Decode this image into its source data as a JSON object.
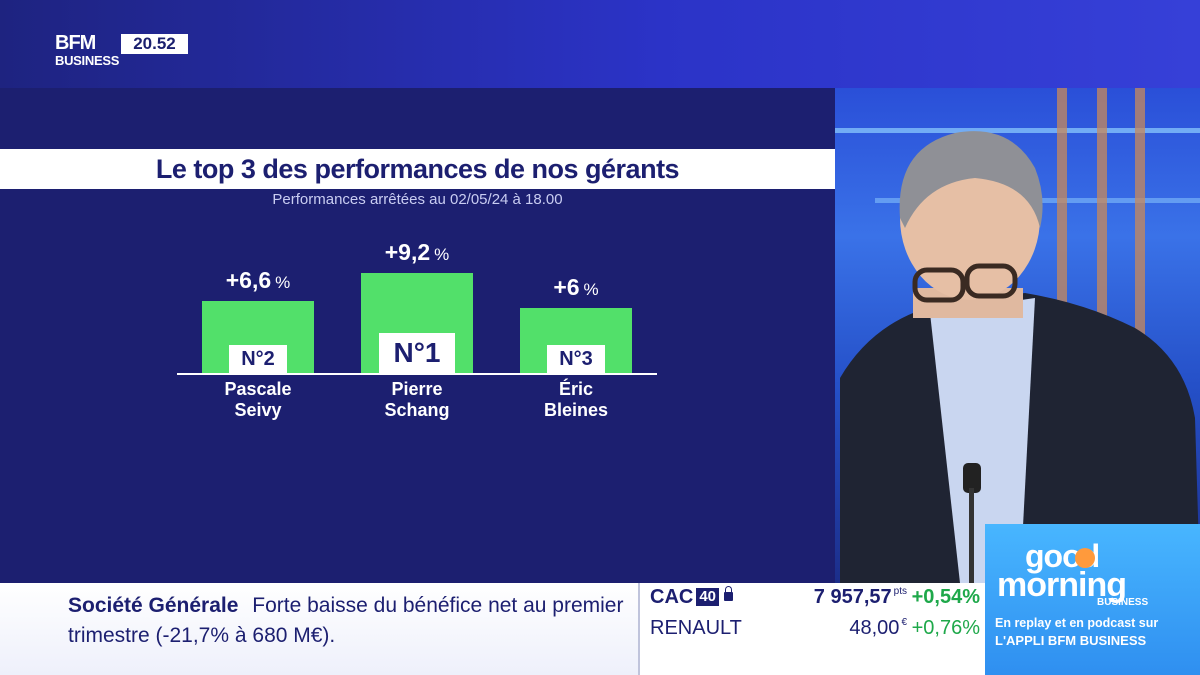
{
  "channel": {
    "logo_top": "BFM",
    "logo_bottom": "BUSINESS",
    "time": "20.52"
  },
  "graphic": {
    "title": "Le top 3 des performances de nos gérants",
    "subtitle": "Performances arrêtées au 02/05/24 à 18.00",
    "bar_color": "#52e06a"
  },
  "chart_data": {
    "type": "bar",
    "title": "Le top 3 des performances de nos gérants",
    "subtitle": "Performances arrêtées au 02/05/24 à 18.00",
    "unit": "%",
    "categories": [
      "Pascale Seivy",
      "Pierre Schang",
      "Éric Bleines"
    ],
    "values": [
      6.6,
      9.2,
      6
    ],
    "value_labels": [
      "+6,6",
      "+9,2",
      "+6"
    ],
    "ranks": [
      "N°2",
      "N°1",
      "N°3"
    ],
    "name_lines": [
      [
        "Pascale",
        "Seivy"
      ],
      [
        "Pierre",
        "Schang"
      ],
      [
        "Éric",
        "Bleines"
      ]
    ]
  },
  "ticker": {
    "company": "Société Générale",
    "headline": "Forte baisse du bénéfice net au premier trimestre (-21,7% à 680 M€).",
    "index_name": "CAC",
    "index_badge": "40",
    "index_value": "7 957,57",
    "index_unit": "pts",
    "index_change": "+0,54%",
    "stock_name": "RENAULT",
    "stock_value": "48,00",
    "stock_unit": "€",
    "stock_change": "+0,76%",
    "positive_color": "#1ea84a"
  },
  "promo": {
    "good": "good",
    "morning": "morning",
    "business": "BUSINESS",
    "line1": "En replay et en podcast sur",
    "line2": "L'APPLI BFM BUSINESS"
  }
}
